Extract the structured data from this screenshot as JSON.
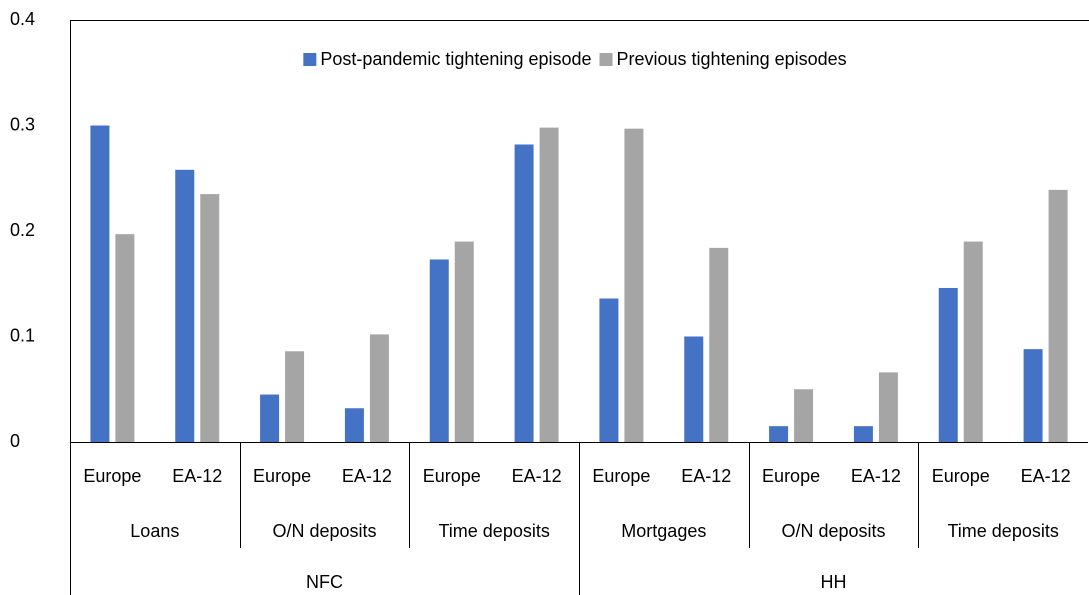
{
  "chart_data": {
    "type": "bar",
    "categories": [
      "Europe",
      "EA-12",
      "Europe",
      "EA-12",
      "Europe",
      "EA-12",
      "Europe",
      "EA-12",
      "Europe",
      "EA-12",
      "Europe",
      "EA-12"
    ],
    "category_levels": [
      [
        "Loans",
        "O/N deposits",
        "Time deposits",
        "Mortgages",
        "O/N deposits",
        "Time deposits"
      ],
      [
        "NFC",
        "HH"
      ]
    ],
    "series": [
      {
        "name": "Post-pandemic tightening episode",
        "color": "#4472c4",
        "values": [
          0.3,
          0.258,
          0.045,
          0.032,
          0.173,
          0.282,
          0.136,
          0.1,
          0.015,
          0.015,
          0.146,
          0.088
        ]
      },
      {
        "name": "Previous tightening episodes",
        "color": "#a5a5a5",
        "values": [
          0.197,
          0.235,
          0.086,
          0.102,
          0.19,
          0.298,
          0.297,
          0.184,
          0.05,
          0.066,
          0.19,
          0.239
        ]
      }
    ],
    "ylim": [
      0,
      0.4
    ],
    "yticks": [
      0,
      0.1,
      0.2,
      0.3,
      0.4
    ],
    "legend": "top",
    "grid": false
  }
}
